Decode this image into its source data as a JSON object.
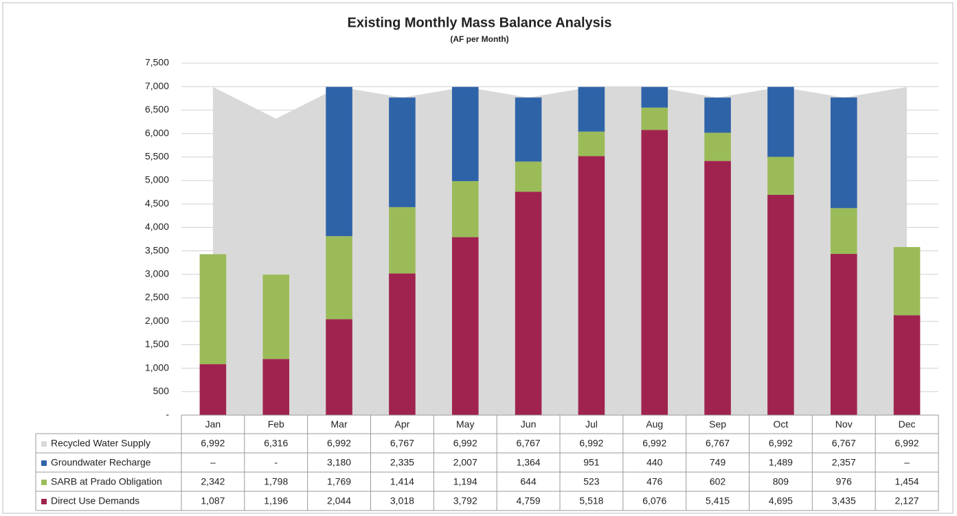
{
  "chart_data": {
    "type": "bar",
    "title": "Existing Monthly Mass Balance Analysis",
    "subtitle": "(AF per Month)",
    "categories": [
      "Jan",
      "Feb",
      "Mar",
      "Apr",
      "May",
      "Jun",
      "Jul",
      "Aug",
      "Sep",
      "Oct",
      "Nov",
      "Dec"
    ],
    "ylim": [
      0,
      7500
    ],
    "yticks": [
      {
        "value": 0,
        "label": "-"
      },
      500,
      {
        "value": 1000,
        "label": "1,000"
      },
      {
        "value": 1500,
        "label": "1,500"
      },
      {
        "value": 2000,
        "label": "2,000"
      },
      {
        "value": 2500,
        "label": "2,500"
      },
      {
        "value": 3000,
        "label": "3,000"
      },
      {
        "value": 3500,
        "label": "3,500"
      },
      {
        "value": 4000,
        "label": "4,000"
      },
      {
        "value": 4500,
        "label": "4,500"
      },
      {
        "value": 5000,
        "label": "5,000"
      },
      {
        "value": 5500,
        "label": "5,500"
      },
      {
        "value": 6000,
        "label": "6,000"
      },
      {
        "value": 6500,
        "label": "6,500"
      },
      {
        "value": 7000,
        "label": "7,000"
      },
      {
        "value": 7500,
        "label": "7,500"
      }
    ],
    "grid": true,
    "series": [
      {
        "name": "Recycled Water Supply",
        "type": "area",
        "color": "#d9d9d9",
        "values": [
          6992,
          6316,
          6992,
          6767,
          6992,
          6767,
          6992,
          6992,
          6767,
          6992,
          6767,
          6992
        ],
        "value_labels": [
          "6,992",
          "6,316",
          "6,992",
          "6,767",
          "6,992",
          "6,767",
          "6,992",
          "6,992",
          "6,767",
          "6,992",
          "6,767",
          "6,992"
        ]
      },
      {
        "name": "Groundwater Recharge",
        "type": "bar",
        "color": "#2f63a8",
        "values": [
          0,
          0,
          3180,
          2335,
          2007,
          1364,
          951,
          440,
          749,
          1489,
          2357,
          0
        ],
        "value_labels": [
          "–",
          "-",
          "3,180",
          "2,335",
          "2,007",
          "1,364",
          "951",
          "440",
          "749",
          "1,489",
          "2,357",
          "–"
        ]
      },
      {
        "name": "SARB at Prado Obligation",
        "type": "bar",
        "color": "#9bbb59",
        "values": [
          2342,
          1798,
          1769,
          1414,
          1194,
          644,
          523,
          476,
          602,
          809,
          976,
          1454
        ],
        "value_labels": [
          "2,342",
          "1,798",
          "1,769",
          "1,414",
          "1,194",
          "644",
          "523",
          "476",
          "602",
          "809",
          "976",
          "1,454"
        ]
      },
      {
        "name": "Direct Use Demands",
        "type": "bar",
        "color": "#a0234f",
        "values": [
          1087,
          1196,
          2044,
          3018,
          3792,
          4759,
          5518,
          6076,
          5415,
          4695,
          3435,
          2127
        ],
        "value_labels": [
          "1,087",
          "1,196",
          "2,044",
          "3,018",
          "3,792",
          "4,759",
          "5,518",
          "6,076",
          "5,415",
          "4,695",
          "3,435",
          "2,127"
        ]
      }
    ]
  }
}
